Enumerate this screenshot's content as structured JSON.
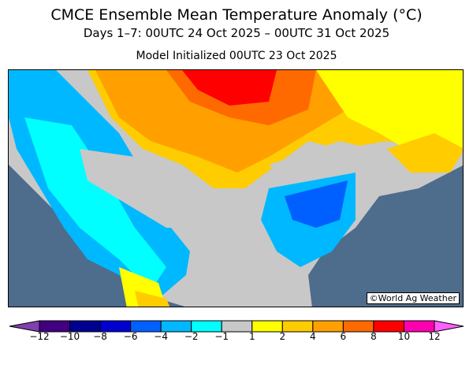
{
  "title": "CMCE Ensemble Mean Temperature Anomaly (°C)",
  "subtitle": "Days 1–7: 00UTC 24 Oct 2025 – 00UTC 31 Oct 2025",
  "init": "Model Initialized 00UTC 23 Oct 2025",
  "credit": "©World Ag Weather",
  "colorbar": {
    "labels": [
      "−12",
      "−10",
      "−8",
      "−6",
      "−4",
      "−2",
      "−1",
      "1",
      "2",
      "4",
      "6",
      "8",
      "10",
      "12"
    ],
    "colors": [
      "#400080",
      "#000090",
      "#0000d0",
      "#0060ff",
      "#00b8ff",
      "#00ffff",
      "#c8c8c8",
      "#ffff00",
      "#ffcc00",
      "#ffa000",
      "#ff6a00",
      "#ff0000",
      "#ff00b0"
    ],
    "under": "#8040b0",
    "over": "#ff60ff"
  },
  "ocean": "#4e6c8c"
}
